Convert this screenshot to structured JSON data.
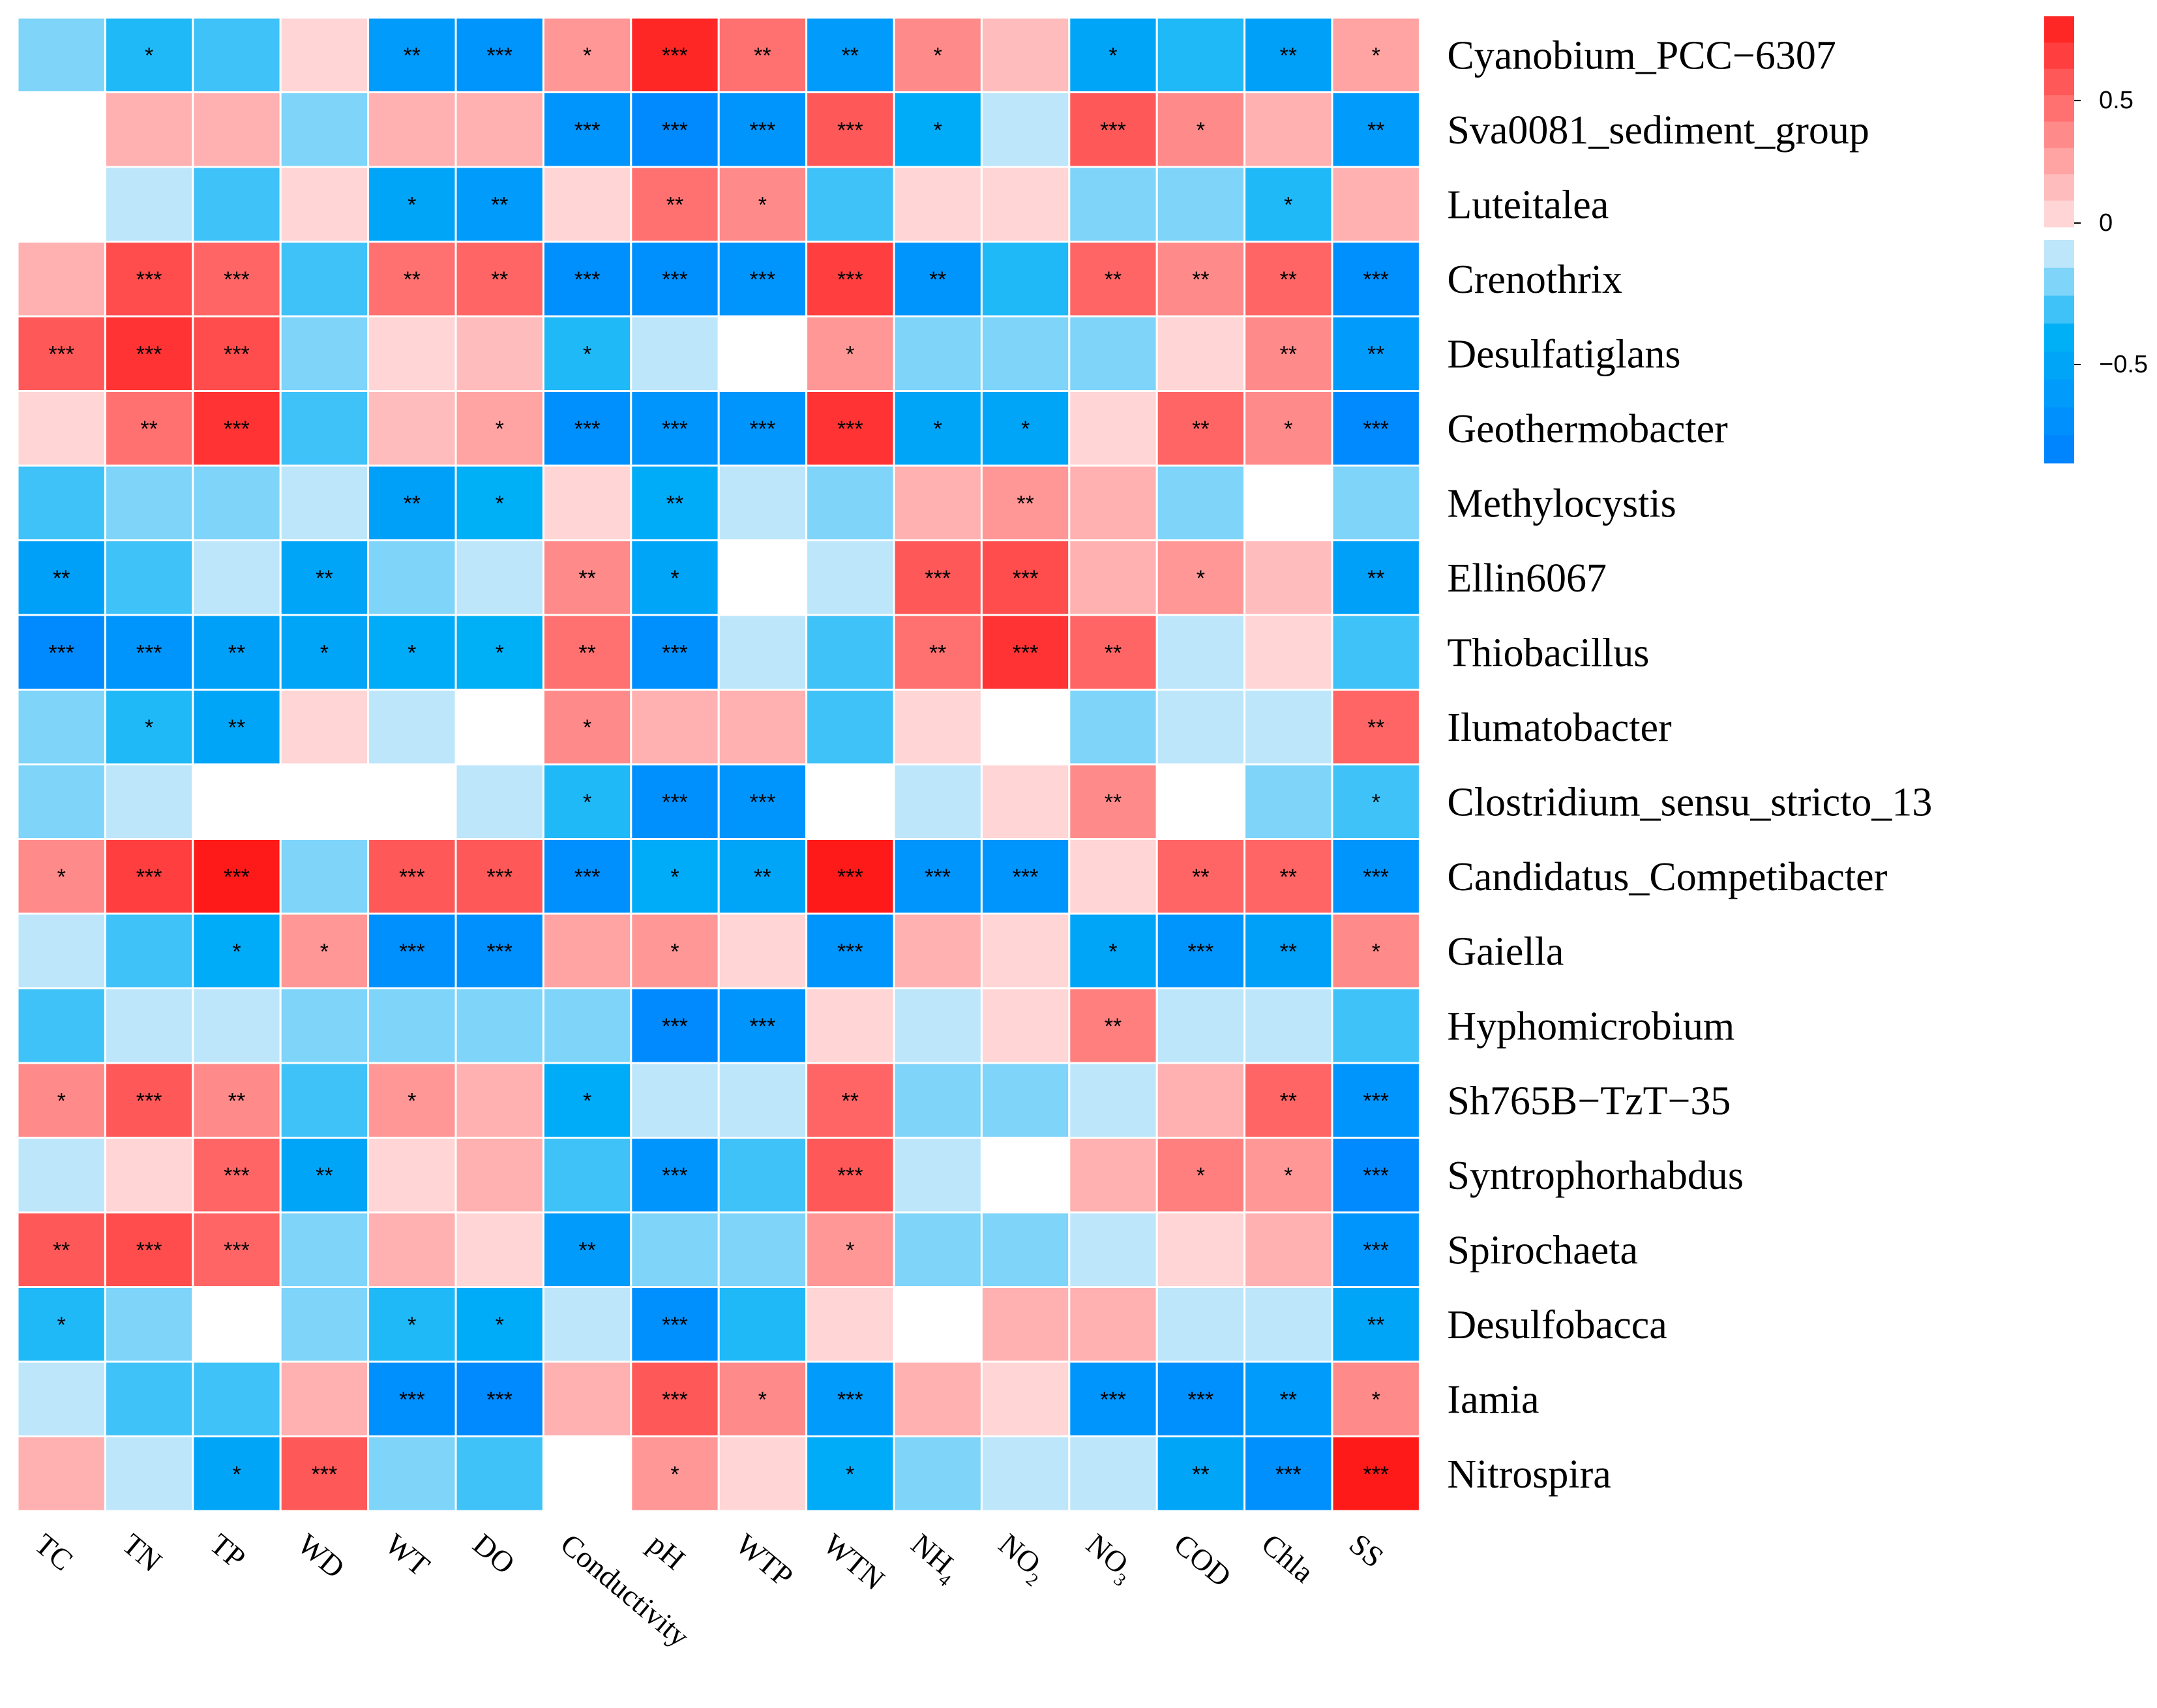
{
  "chart_data": {
    "type": "heatmap",
    "title": "",
    "columns": [
      {
        "label": "TC"
      },
      {
        "label": "TN"
      },
      {
        "label": "TP"
      },
      {
        "label": "WD"
      },
      {
        "label": "WT"
      },
      {
        "label": "DO"
      },
      {
        "label": "Conductivity"
      },
      {
        "label": "pH"
      },
      {
        "label": "WTP"
      },
      {
        "label": "WTN"
      },
      {
        "label": "NH",
        "sub": "4"
      },
      {
        "label": "NO",
        "sub": "2"
      },
      {
        "label": "NO",
        "sub": "3"
      },
      {
        "label": "COD"
      },
      {
        "label": "Chla"
      },
      {
        "label": "SS"
      }
    ],
    "rows": [
      "Cyanobium_PCC−6307",
      "Sva0081_sediment_group",
      "Luteitalea",
      "Crenothrix",
      "Desulfatiglans",
      "Geothermobacter",
      "Methylocystis",
      "Ellin6067",
      "Thiobacillus",
      "Ilumatobacter",
      "Clostridium_sensu_stricto_13",
      "Candidatus_Competibacter",
      "Gaiella",
      "Hyphomicrobium",
      "Sh765B−TzT−35",
      "Syntrophorhabdus",
      "Spirochaeta",
      "Desulfobacca",
      "Iamia",
      "Nitrospira"
    ],
    "values": [
      [
        -0.2,
        -0.35,
        -0.3,
        0.1,
        -0.6,
        -0.65,
        0.35,
        0.8,
        0.5,
        -0.6,
        0.4,
        0.2,
        -0.5,
        -0.35,
        -0.55,
        0.3
      ],
      [
        0.0,
        0.25,
        0.25,
        -0.2,
        0.25,
        0.25,
        -0.65,
        -0.75,
        -0.65,
        0.6,
        -0.45,
        -0.1,
        0.6,
        0.4,
        0.25,
        -0.6
      ],
      [
        0.0,
        -0.1,
        -0.3,
        0.1,
        -0.5,
        -0.6,
        0.1,
        0.5,
        0.4,
        -0.3,
        0.1,
        0.1,
        -0.2,
        -0.2,
        -0.35,
        0.25
      ],
      [
        0.25,
        0.65,
        0.55,
        -0.3,
        0.5,
        0.55,
        -0.7,
        -0.7,
        -0.65,
        0.7,
        -0.65,
        -0.35,
        0.55,
        0.4,
        0.55,
        -0.7
      ],
      [
        0.6,
        0.75,
        0.65,
        -0.2,
        0.1,
        0.2,
        -0.35,
        -0.1,
        0.0,
        0.35,
        -0.2,
        -0.2,
        -0.2,
        0.1,
        0.4,
        -0.6
      ],
      [
        0.1,
        0.5,
        0.75,
        -0.3,
        0.2,
        0.3,
        -0.7,
        -0.65,
        -0.65,
        0.75,
        -0.5,
        -0.5,
        0.1,
        0.55,
        0.4,
        -0.75
      ],
      [
        -0.3,
        -0.2,
        -0.2,
        -0.1,
        -0.55,
        -0.4,
        0.1,
        -0.45,
        -0.1,
        -0.2,
        0.25,
        0.35,
        0.25,
        -0.2,
        0.0,
        -0.2
      ],
      [
        -0.55,
        -0.3,
        -0.1,
        -0.5,
        -0.2,
        -0.1,
        0.4,
        -0.5,
        0.0,
        -0.1,
        0.6,
        0.65,
        0.25,
        0.35,
        0.2,
        -0.55
      ],
      [
        -0.75,
        -0.65,
        -0.55,
        -0.5,
        -0.45,
        -0.4,
        0.5,
        -0.7,
        -0.1,
        -0.3,
        0.5,
        0.75,
        0.55,
        -0.1,
        0.1,
        -0.3
      ],
      [
        -0.2,
        -0.35,
        -0.5,
        0.1,
        -0.1,
        0.0,
        0.4,
        0.25,
        0.25,
        -0.3,
        0.1,
        0.0,
        -0.2,
        -0.1,
        -0.1,
        0.55
      ],
      [
        -0.2,
        -0.1,
        0.0,
        0.0,
        0.0,
        -0.1,
        -0.35,
        -0.7,
        -0.65,
        0.0,
        -0.1,
        0.1,
        0.4,
        0.0,
        -0.2,
        -0.3
      ],
      [
        0.4,
        0.7,
        0.85,
        -0.2,
        0.6,
        0.6,
        -0.7,
        -0.45,
        -0.5,
        0.85,
        -0.65,
        -0.65,
        0.1,
        0.55,
        0.55,
        -0.65
      ],
      [
        -0.1,
        -0.3,
        -0.45,
        0.35,
        -0.7,
        -0.7,
        0.3,
        0.35,
        0.1,
        -0.65,
        0.25,
        0.1,
        -0.5,
        -0.65,
        -0.55,
        0.4
      ],
      [
        -0.3,
        -0.1,
        -0.1,
        -0.2,
        -0.2,
        -0.2,
        -0.2,
        -0.75,
        -0.65,
        0.1,
        -0.1,
        0.1,
        0.45,
        -0.1,
        -0.1,
        -0.3
      ],
      [
        0.4,
        0.6,
        0.4,
        -0.3,
        0.35,
        0.25,
        -0.45,
        -0.1,
        -0.1,
        0.55,
        -0.2,
        -0.2,
        -0.1,
        0.25,
        0.55,
        -0.65
      ],
      [
        -0.1,
        0.1,
        0.55,
        -0.5,
        0.1,
        0.25,
        -0.3,
        -0.65,
        -0.3,
        0.6,
        -0.1,
        0.0,
        0.25,
        0.45,
        0.35,
        -0.75
      ],
      [
        0.6,
        0.65,
        0.55,
        -0.2,
        0.25,
        0.1,
        -0.6,
        -0.2,
        -0.2,
        0.35,
        -0.2,
        -0.2,
        -0.1,
        0.1,
        0.25,
        -0.65
      ],
      [
        -0.35,
        -0.2,
        0.0,
        -0.2,
        -0.35,
        -0.45,
        -0.1,
        -0.7,
        -0.35,
        0.1,
        0.0,
        0.25,
        0.25,
        -0.1,
        -0.1,
        -0.5
      ],
      [
        -0.1,
        -0.3,
        -0.3,
        0.25,
        -0.7,
        -0.75,
        0.25,
        0.6,
        0.4,
        -0.6,
        0.25,
        0.1,
        -0.65,
        -0.7,
        -0.6,
        0.4
      ],
      [
        0.25,
        -0.1,
        -0.5,
        0.6,
        -0.2,
        -0.3,
        0.0,
        0.35,
        0.1,
        -0.45,
        -0.2,
        -0.1,
        -0.1,
        -0.5,
        -0.7,
        0.85
      ]
    ],
    "significance": [
      [
        "",
        "*",
        "",
        "",
        "**",
        "***",
        "*",
        "***",
        "**",
        "**",
        "*",
        "",
        "*",
        "",
        "**",
        "*"
      ],
      [
        "",
        "",
        "",
        "",
        "",
        "",
        "***",
        "***",
        "***",
        "***",
        "*",
        "",
        "***",
        "*",
        "",
        "**"
      ],
      [
        "",
        "",
        "",
        "",
        "*",
        "**",
        "",
        "**",
        "*",
        "",
        "",
        "",
        "",
        "",
        "*",
        ""
      ],
      [
        "",
        "***",
        "***",
        "",
        "**",
        "**",
        "***",
        "***",
        "***",
        "***",
        "**",
        "",
        "**",
        "**",
        "**",
        "***"
      ],
      [
        "***",
        "***",
        "***",
        "",
        "",
        "",
        "*",
        "",
        "",
        "*",
        "",
        "",
        "",
        "",
        "**",
        "**"
      ],
      [
        "",
        "**",
        "***",
        "",
        "",
        "*",
        "***",
        "***",
        "***",
        "***",
        "*",
        "*",
        "",
        "**",
        "*",
        "***"
      ],
      [
        "",
        "",
        "",
        "",
        "**",
        "*",
        "",
        "**",
        "",
        "",
        "",
        "**",
        "",
        "",
        "",
        ""
      ],
      [
        "**",
        "",
        "",
        "**",
        "",
        "",
        "**",
        "*",
        "",
        "",
        "***",
        "***",
        "",
        "*",
        "",
        "**"
      ],
      [
        "***",
        "***",
        "**",
        "*",
        "*",
        "*",
        "**",
        "***",
        "",
        "",
        "**",
        "***",
        "**",
        "",
        "",
        ""
      ],
      [
        "",
        "*",
        "**",
        "",
        "",
        "",
        "*",
        "",
        "",
        "",
        "",
        "",
        "",
        "",
        "",
        "**"
      ],
      [
        "",
        "",
        "",
        "",
        "",
        "",
        "*",
        "***",
        "***",
        "",
        "",
        "",
        "**",
        "",
        "",
        "*"
      ],
      [
        "*",
        "***",
        "***",
        "",
        "***",
        "***",
        "***",
        "*",
        "**",
        "***",
        "***",
        "***",
        "",
        "**",
        "**",
        "***"
      ],
      [
        "",
        "",
        "*",
        "*",
        "***",
        "***",
        "",
        "*",
        "",
        "***",
        "",
        "",
        "*",
        "***",
        "**",
        "*"
      ],
      [
        "",
        "",
        "",
        "",
        "",
        "",
        "",
        "***",
        "***",
        "",
        "",
        "",
        "**",
        "",
        "",
        ""
      ],
      [
        "*",
        "***",
        "**",
        "",
        "*",
        "",
        "*",
        "",
        "",
        "**",
        "",
        "",
        "",
        "",
        "**",
        "***"
      ],
      [
        "",
        "",
        "***",
        "**",
        "",
        "",
        "",
        "***",
        "",
        "***",
        "",
        "",
        "",
        "*",
        "*",
        "***"
      ],
      [
        "**",
        "***",
        "***",
        "",
        "",
        "",
        "**",
        "",
        "",
        "*",
        "",
        "",
        "",
        "",
        "",
        "***"
      ],
      [
        "*",
        "",
        "",
        "",
        "*",
        "*",
        "",
        "***",
        "",
        "",
        "",
        "",
        "",
        "",
        "",
        "**"
      ],
      [
        "",
        "",
        "",
        "",
        "***",
        "***",
        "",
        "***",
        "*",
        "***",
        "",
        "",
        "***",
        "***",
        "**",
        "*"
      ],
      [
        "",
        "",
        "*",
        "***",
        "",
        "",
        "",
        "*",
        "",
        "*",
        "",
        "",
        "",
        "**",
        "***",
        "***"
      ]
    ],
    "colorscale": {
      "negative_max": "#0085FF",
      "negative_mid": "#00B0F6",
      "negative_min": "#DCEFFC",
      "positive_min": "#FFE2E2",
      "positive_mid": "#FF8A8A",
      "positive_max": "#FF1A1A",
      "zero": "#FFFFFF"
    },
    "legend": {
      "ticks": [
        {
          "label": "0.5",
          "value": 0.5
        },
        {
          "label": "0",
          "value": 0
        },
        {
          "label": "−0.5",
          "value": -0.5
        }
      ],
      "range": [
        -0.8,
        0.85
      ]
    }
  }
}
